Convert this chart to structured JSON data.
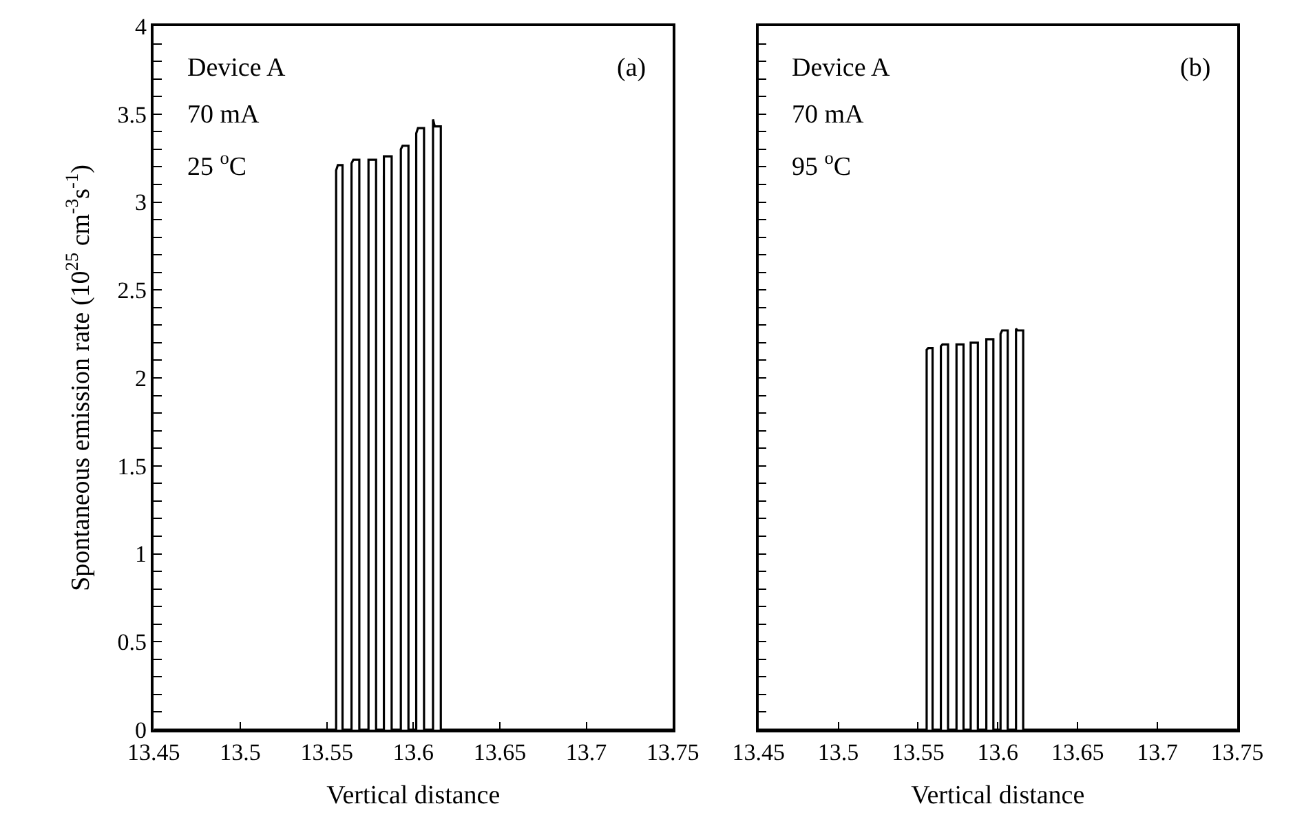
{
  "chart_data": [
    {
      "type": "line",
      "xlabel": "Vertical distance",
      "ylabel": "Spontaneous emission rate (10$^{25}$ cm$^{-3}$s$^{-1}$)",
      "annotations": [
        "Device A",
        "70 mA",
        "25 $^{o}$C",
        "(a)"
      ],
      "xlim": [
        13.45,
        13.75
      ],
      "xticks": [
        13.45,
        13.5,
        13.55,
        13.6,
        13.65,
        13.7,
        13.75
      ],
      "ylim": [
        0,
        4
      ],
      "yticks": [
        0,
        {
          "value": 0.1,
          "label": null
        },
        {
          "value": 0.2,
          "label": null
        },
        {
          "value": 0.3,
          "label": null
        },
        {
          "value": 0.4,
          "label": null
        },
        0.5,
        {
          "value": 0.6,
          "label": null
        },
        {
          "value": 0.7,
          "label": null
        },
        {
          "value": 0.8,
          "label": null
        },
        {
          "value": 0.9,
          "label": null
        },
        1,
        {
          "value": 1.1,
          "label": null
        },
        {
          "value": 1.2,
          "label": null
        },
        {
          "value": 1.3,
          "label": null
        },
        {
          "value": 1.4,
          "label": null
        },
        1.5,
        {
          "value": 1.6,
          "label": null
        },
        {
          "value": 1.7,
          "label": null
        },
        {
          "value": 1.8,
          "label": null
        },
        {
          "value": 1.9,
          "label": null
        },
        2,
        {
          "value": 2.1,
          "label": null
        },
        {
          "value": 2.2,
          "label": null
        },
        {
          "value": 2.3,
          "label": null
        },
        {
          "value": 2.4,
          "label": null
        },
        2.5,
        {
          "value": 2.6,
          "label": null
        },
        {
          "value": 2.7,
          "label": null
        },
        {
          "value": 2.8,
          "label": null
        },
        {
          "value": 2.9,
          "label": null
        },
        3,
        {
          "value": 3.1,
          "label": null
        },
        {
          "value": 3.2,
          "label": null
        },
        {
          "value": 3.3,
          "label": null
        },
        {
          "value": 3.4,
          "label": null
        },
        3.5,
        {
          "value": 3.6,
          "label": null
        },
        {
          "value": 3.7,
          "label": null
        },
        {
          "value": 3.8,
          "label": null
        },
        {
          "value": 3.9,
          "label": null
        },
        4
      ],
      "marker": "none",
      "line_style": "solid",
      "series": [
        {
          "color": "#000000",
          "x": [
            13.45,
            13.5554,
            13.5554,
            13.5564,
            13.5591,
            13.5591,
            13.5643,
            13.5643,
            13.5653,
            13.5688,
            13.5688,
            13.5741,
            13.5741,
            13.5751,
            13.5785,
            13.5785,
            13.583,
            13.583,
            13.584,
            13.5875,
            13.5875,
            13.5928,
            13.5928,
            13.5938,
            13.5972,
            13.5972,
            13.6017,
            13.6017,
            13.6027,
            13.6062,
            13.6062,
            13.6114,
            13.6114,
            13.6124,
            13.6159,
            13.6159,
            13.6159,
            13.75
          ],
          "values": [
            0,
            0,
            3.18,
            3.21,
            3.21,
            0,
            0,
            3.22,
            3.24,
            3.24,
            0,
            0,
            3.24,
            3.24,
            3.24,
            0,
            0,
            3.26,
            3.26,
            3.26,
            0,
            0,
            3.3,
            3.32,
            3.32,
            0,
            0,
            3.39,
            3.42,
            3.42,
            0,
            0,
            3.47,
            3.43,
            3.43,
            3.26,
            0,
            0
          ]
        }
      ]
    },
    {
      "type": "line",
      "xlabel": "Vertical distance",
      "annotations": [
        "Device A",
        "70 mA",
        "95 $^{o}$C",
        "(b)"
      ],
      "xlim": [
        13.45,
        13.75
      ],
      "xticks": [
        13.45,
        13.5,
        13.55,
        13.6,
        13.65,
        13.7,
        13.75
      ],
      "ylim": [
        0,
        4
      ],
      "yticks": [
        0,
        {
          "value": 0.1,
          "label": null
        },
        {
          "value": 0.2,
          "label": null
        },
        {
          "value": 0.3,
          "label": null
        },
        {
          "value": 0.4,
          "label": null
        },
        0.5,
        {
          "value": 0.6,
          "label": null
        },
        {
          "value": 0.7,
          "label": null
        },
        {
          "value": 0.8,
          "label": null
        },
        {
          "value": 0.9,
          "label": null
        },
        1,
        {
          "value": 1.1,
          "label": null
        },
        {
          "value": 1.2,
          "label": null
        },
        {
          "value": 1.3,
          "label": null
        },
        {
          "value": 1.4,
          "label": null
        },
        1.5,
        {
          "value": 1.6,
          "label": null
        },
        {
          "value": 1.7,
          "label": null
        },
        {
          "value": 1.8,
          "label": null
        },
        {
          "value": 1.9,
          "label": null
        },
        2,
        {
          "value": 2.1,
          "label": null
        },
        {
          "value": 2.2,
          "label": null
        },
        {
          "value": 2.3,
          "label": null
        },
        {
          "value": 2.4,
          "label": null
        },
        2.5,
        {
          "value": 2.6,
          "label": null
        },
        {
          "value": 2.7,
          "label": null
        },
        {
          "value": 2.8,
          "label": null
        },
        {
          "value": 2.9,
          "label": null
        },
        3,
        {
          "value": 3.1,
          "label": null
        },
        {
          "value": 3.2,
          "label": null
        },
        {
          "value": 3.3,
          "label": null
        },
        {
          "value": 3.4,
          "label": null
        },
        3.5,
        {
          "value": 3.6,
          "label": null
        },
        {
          "value": 3.7,
          "label": null
        },
        {
          "value": 3.8,
          "label": null
        },
        {
          "value": 3.9,
          "label": null
        },
        4
      ],
      "tick_labels": "x",
      "marker": "none",
      "line_style": "solid",
      "series": [
        {
          "color": "#000000",
          "x": [
            13.45,
            13.5554,
            13.5554,
            13.5564,
            13.5591,
            13.5591,
            13.5643,
            13.5643,
            13.5653,
            13.5688,
            13.5688,
            13.5741,
            13.5741,
            13.5751,
            13.5785,
            13.5785,
            13.583,
            13.583,
            13.584,
            13.5875,
            13.5875,
            13.5928,
            13.5928,
            13.5938,
            13.5972,
            13.5972,
            13.6017,
            13.6017,
            13.6027,
            13.6062,
            13.6062,
            13.6114,
            13.6114,
            13.6124,
            13.6159,
            13.6159,
            13.6159,
            13.75
          ],
          "values": [
            0,
            0,
            2.16,
            2.17,
            2.17,
            0,
            0,
            2.18,
            2.19,
            2.19,
            0,
            0,
            2.19,
            2.19,
            2.19,
            0,
            0,
            2.2,
            2.2,
            2.2,
            0,
            0,
            2.22,
            2.22,
            2.22,
            0,
            0,
            2.25,
            2.27,
            2.27,
            0,
            0,
            2.28,
            2.27,
            2.27,
            2.22,
            0,
            0
          ]
        }
      ]
    }
  ]
}
